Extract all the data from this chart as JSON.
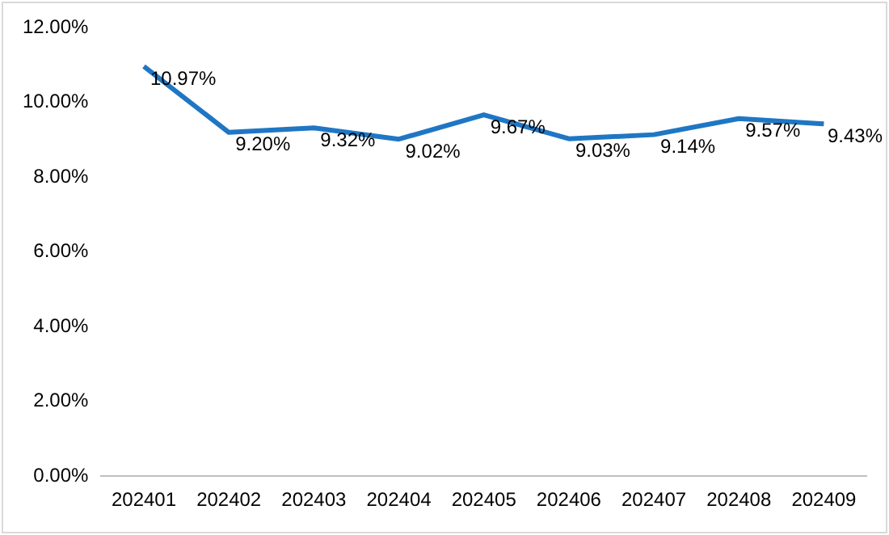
{
  "chart_data": {
    "type": "line",
    "categories": [
      "202401",
      "202402",
      "202403",
      "202404",
      "202405",
      "202406",
      "202407",
      "202408",
      "202409"
    ],
    "series": [
      {
        "color": "#1f77c4",
        "values": [
          10.97,
          9.2,
          9.32,
          9.02,
          9.67,
          9.03,
          9.14,
          9.57,
          9.43
        ],
        "value_labels": [
          "10.97%",
          "9.20%",
          "9.32%",
          "9.02%",
          "9.67%",
          "9.03%",
          "9.14%",
          "9.57%",
          "9.43%"
        ]
      }
    ],
    "ylim": [
      0,
      12
    ],
    "yticks": [
      {
        "value": 0,
        "label": "0.00%"
      },
      {
        "value": 2,
        "label": "2.00%"
      },
      {
        "value": 4,
        "label": "4.00%"
      },
      {
        "value": 6,
        "label": "6.00%"
      },
      {
        "value": 8,
        "label": "8.00%"
      },
      {
        "value": 10,
        "label": "10.00%"
      },
      {
        "value": 12,
        "label": "12.00%"
      }
    ],
    "grid": false,
    "legend": false,
    "marker": "none",
    "line_style": "solid"
  }
}
